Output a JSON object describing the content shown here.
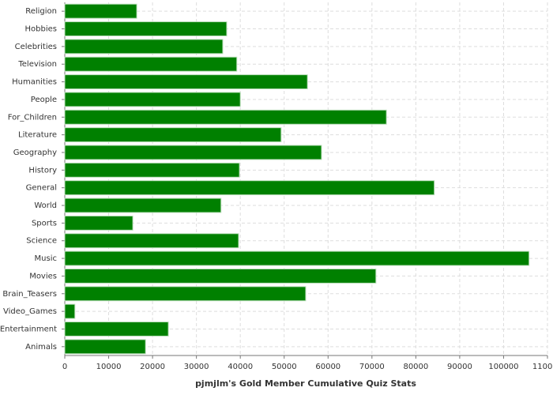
{
  "chart_data": {
    "type": "bar",
    "orientation": "horizontal",
    "xlabel": "pjmjlm's Gold Member Cumulative Quiz Stats",
    "categories": [
      "Religion",
      "Hobbies",
      "Celebrities",
      "Television",
      "Humanities",
      "People",
      "For_Children",
      "Literature",
      "Geography",
      "History",
      "General",
      "World",
      "Sports",
      "Science",
      "Music",
      "Movies",
      "Brain_Teasers",
      "Video_Games",
      "Entertainment",
      "Animals"
    ],
    "values": [
      16400,
      36900,
      36000,
      39200,
      55300,
      40000,
      73300,
      49300,
      58500,
      39800,
      84200,
      35600,
      15500,
      39600,
      105800,
      70900,
      54900,
      2300,
      23600,
      18400
    ],
    "color": "#008000",
    "xlim": [
      0,
      110000
    ],
    "xticks": [
      0,
      10000,
      20000,
      30000,
      40000,
      50000,
      60000,
      70000,
      80000,
      90000,
      100000,
      110000
    ],
    "grid": true
  }
}
